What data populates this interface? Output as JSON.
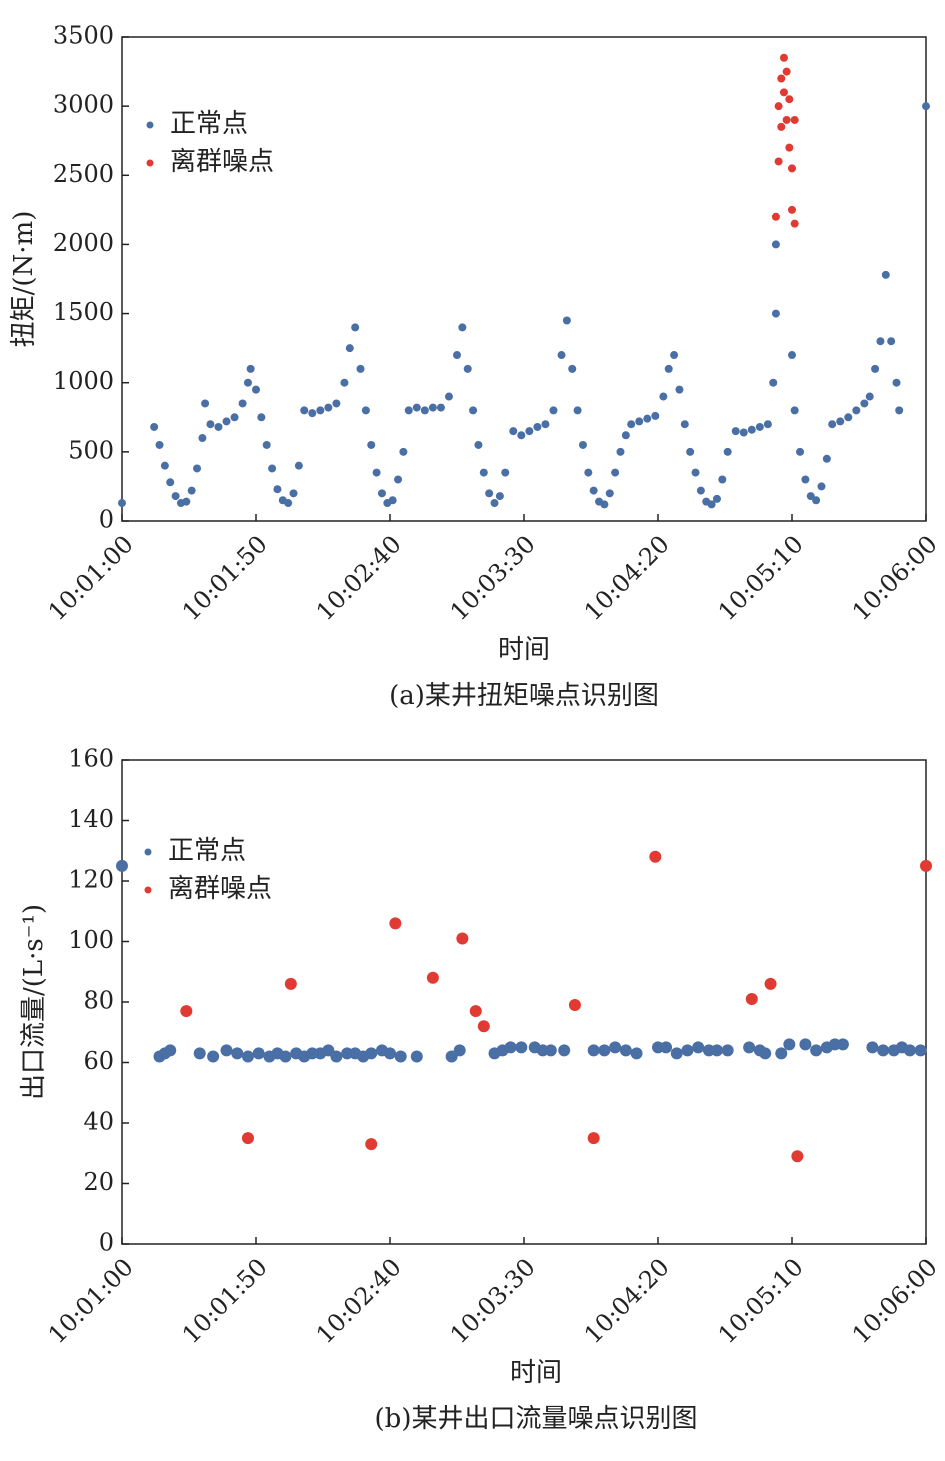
{
  "chart_data": [
    {
      "type": "scatter",
      "caption": "(a)某井扭矩噪点识别图",
      "xlabel": "时间",
      "ylabel": "扭矩/(N·m)",
      "xlim": [
        "10:01:00",
        "10:06:00"
      ],
      "xticks": [
        "10:01:00",
        "10:01:50",
        "10:02:40",
        "10:03:30",
        "10:04:20",
        "10:05:10",
        "10:06:00"
      ],
      "ylim": [
        0,
        3500
      ],
      "yticks": [
        0,
        500,
        1000,
        1500,
        2000,
        2500,
        3000,
        3500
      ],
      "legend": "upper left",
      "grid": false,
      "series": [
        {
          "name": "正常点",
          "color": "#4a6fa5",
          "x": [
            "10:01:00",
            "10:01:12",
            "10:01:14",
            "10:01:16",
            "10:01:18",
            "10:01:20",
            "10:01:22",
            "10:01:24",
            "10:01:26",
            "10:01:28",
            "10:01:30",
            "10:01:31",
            "10:01:33",
            "10:01:36",
            "10:01:39",
            "10:01:42",
            "10:01:45",
            "10:01:47",
            "10:01:48",
            "10:01:50",
            "10:01:52",
            "10:01:54",
            "10:01:56",
            "10:01:58",
            "10:02:00",
            "10:02:02",
            "10:02:04",
            "10:02:06",
            "10:02:08",
            "10:02:11",
            "10:02:14",
            "10:02:17",
            "10:02:20",
            "10:02:23",
            "10:02:25",
            "10:02:27",
            "10:02:29",
            "10:02:31",
            "10:02:33",
            "10:02:35",
            "10:02:37",
            "10:02:39",
            "10:02:41",
            "10:02:43",
            "10:02:45",
            "10:02:47",
            "10:02:50",
            "10:02:53",
            "10:02:56",
            "10:02:59",
            "10:03:02",
            "10:03:05",
            "10:03:07",
            "10:03:09",
            "10:03:11",
            "10:03:13",
            "10:03:15",
            "10:03:17",
            "10:03:19",
            "10:03:21",
            "10:03:23",
            "10:03:26",
            "10:03:29",
            "10:03:32",
            "10:03:35",
            "10:03:38",
            "10:03:41",
            "10:03:44",
            "10:03:46",
            "10:03:48",
            "10:03:50",
            "10:03:52",
            "10:03:54",
            "10:03:56",
            "10:03:58",
            "10:04:00",
            "10:04:02",
            "10:04:04",
            "10:04:06",
            "10:04:08",
            "10:04:10",
            "10:04:13",
            "10:04:16",
            "10:04:19",
            "10:04:22",
            "10:04:24",
            "10:04:26",
            "10:04:28",
            "10:04:30",
            "10:04:32",
            "10:04:34",
            "10:04:36",
            "10:04:38",
            "10:04:40",
            "10:04:42",
            "10:04:44",
            "10:04:46",
            "10:04:49",
            "10:04:52",
            "10:04:55",
            "10:04:58",
            "10:05:01",
            "10:05:03",
            "10:05:04",
            "10:05:04",
            "10:05:10",
            "10:05:11",
            "10:05:13",
            "10:05:15",
            "10:05:17",
            "10:05:19",
            "10:05:21",
            "10:05:23",
            "10:05:25",
            "10:05:28",
            "10:05:31",
            "10:05:34",
            "10:05:37",
            "10:05:39",
            "10:05:41",
            "10:05:43",
            "10:05:45",
            "10:05:47",
            "10:05:49",
            "10:05:50",
            "10:06:00"
          ],
          "values": [
            130,
            680,
            550,
            400,
            280,
            180,
            130,
            140,
            220,
            380,
            600,
            850,
            700,
            680,
            720,
            750,
            850,
            1000,
            1100,
            950,
            750,
            550,
            380,
            230,
            150,
            130,
            200,
            400,
            800,
            780,
            800,
            820,
            850,
            1000,
            1250,
            1400,
            1100,
            800,
            550,
            350,
            200,
            130,
            150,
            300,
            500,
            800,
            820,
            800,
            820,
            820,
            900,
            1200,
            1400,
            1100,
            800,
            550,
            350,
            200,
            130,
            180,
            350,
            650,
            620,
            650,
            680,
            700,
            800,
            1200,
            1450,
            1100,
            800,
            550,
            350,
            220,
            140,
            120,
            200,
            350,
            500,
            620,
            700,
            720,
            740,
            760,
            900,
            1100,
            1200,
            950,
            700,
            500,
            350,
            220,
            140,
            120,
            160,
            300,
            500,
            650,
            640,
            660,
            680,
            700,
            1000,
            1500,
            2000,
            1200,
            800,
            500,
            300,
            180,
            150,
            250,
            450,
            700,
            720,
            750,
            800,
            850,
            900,
            1100,
            1300,
            1780,
            1300,
            1000,
            800,
            3000
          ]
        },
        {
          "name": "离群噪点",
          "color": "#e03a33",
          "x": [
            "10:05:04",
            "10:05:05",
            "10:05:05",
            "10:05:06",
            "10:05:06",
            "10:05:07",
            "10:05:07",
            "10:05:08",
            "10:05:08",
            "10:05:09",
            "10:05:09",
            "10:05:10",
            "10:05:10",
            "10:05:11",
            "10:05:11"
          ],
          "values": [
            2200,
            2600,
            3000,
            2850,
            3200,
            3100,
            3350,
            3250,
            2900,
            3050,
            2700,
            2550,
            2250,
            2900,
            2150
          ]
        }
      ]
    },
    {
      "type": "scatter",
      "caption": "(b)某井出口流量噪点识别图",
      "xlabel": "时间",
      "ylabel": "出口流量/(L·s⁻¹)",
      "xlim": [
        "10:01:00",
        "10:06:00"
      ],
      "xticks": [
        "10:01:00",
        "10:01:50",
        "10:02:40",
        "10:03:30",
        "10:04:20",
        "10:05:10",
        "10:06:00"
      ],
      "ylim": [
        0,
        160
      ],
      "yticks": [
        0,
        20,
        40,
        60,
        80,
        100,
        120,
        140,
        160
      ],
      "legend": "upper left",
      "grid": false,
      "series": [
        {
          "name": "正常点",
          "color": "#4a6fa5",
          "x": [
            "10:01:00",
            "10:01:14",
            "10:01:16",
            "10:01:18",
            "10:01:29",
            "10:01:34",
            "10:01:39",
            "10:01:43",
            "10:01:47",
            "10:01:51",
            "10:01:55",
            "10:01:58",
            "10:02:01",
            "10:02:05",
            "10:02:08",
            "10:02:11",
            "10:02:14",
            "10:02:17",
            "10:02:20",
            "10:02:24",
            "10:02:27",
            "10:02:30",
            "10:02:33",
            "10:02:37",
            "10:02:40",
            "10:02:44",
            "10:02:50",
            "10:03:03",
            "10:03:06",
            "10:03:19",
            "10:03:22",
            "10:03:25",
            "10:03:29",
            "10:03:34",
            "10:03:37",
            "10:03:40",
            "10:03:45",
            "10:03:56",
            "10:04:00",
            "10:04:04",
            "10:04:08",
            "10:04:12",
            "10:04:20",
            "10:04:23",
            "10:04:27",
            "10:04:31",
            "10:04:35",
            "10:04:39",
            "10:04:42",
            "10:04:46",
            "10:04:54",
            "10:04:58",
            "10:05:00",
            "10:05:06",
            "10:05:09",
            "10:05:15",
            "10:05:19",
            "10:05:23",
            "10:05:26",
            "10:05:29",
            "10:05:40",
            "10:05:44",
            "10:05:48",
            "10:05:51",
            "10:05:54",
            "10:05:58"
          ],
          "values": [
            125,
            62,
            63,
            64,
            63,
            62,
            64,
            63,
            62,
            63,
            62,
            63,
            62,
            63,
            62,
            63,
            63,
            64,
            62,
            63,
            63,
            62,
            63,
            64,
            63,
            62,
            62,
            62,
            64,
            63,
            64,
            65,
            65,
            65,
            64,
            64,
            64,
            64,
            64,
            65,
            64,
            63,
            65,
            65,
            63,
            64,
            65,
            64,
            64,
            64,
            65,
            64,
            63,
            63,
            66,
            66,
            64,
            65,
            66,
            66,
            65,
            64,
            64,
            65,
            64,
            64
          ]
        },
        {
          "name": "离群噪点",
          "color": "#e03a33",
          "x": [
            "10:01:24",
            "10:01:47",
            "10:02:03",
            "10:02:33",
            "10:02:42",
            "10:02:56",
            "10:03:07",
            "10:03:12",
            "10:03:15",
            "10:03:49",
            "10:03:56",
            "10:04:19",
            "10:04:55",
            "10:05:02",
            "10:05:12",
            "10:06:00"
          ],
          "values": [
            77,
            35,
            86,
            33,
            106,
            88,
            101,
            77,
            72,
            79,
            35,
            128,
            81,
            86,
            29,
            125
          ]
        }
      ]
    }
  ]
}
